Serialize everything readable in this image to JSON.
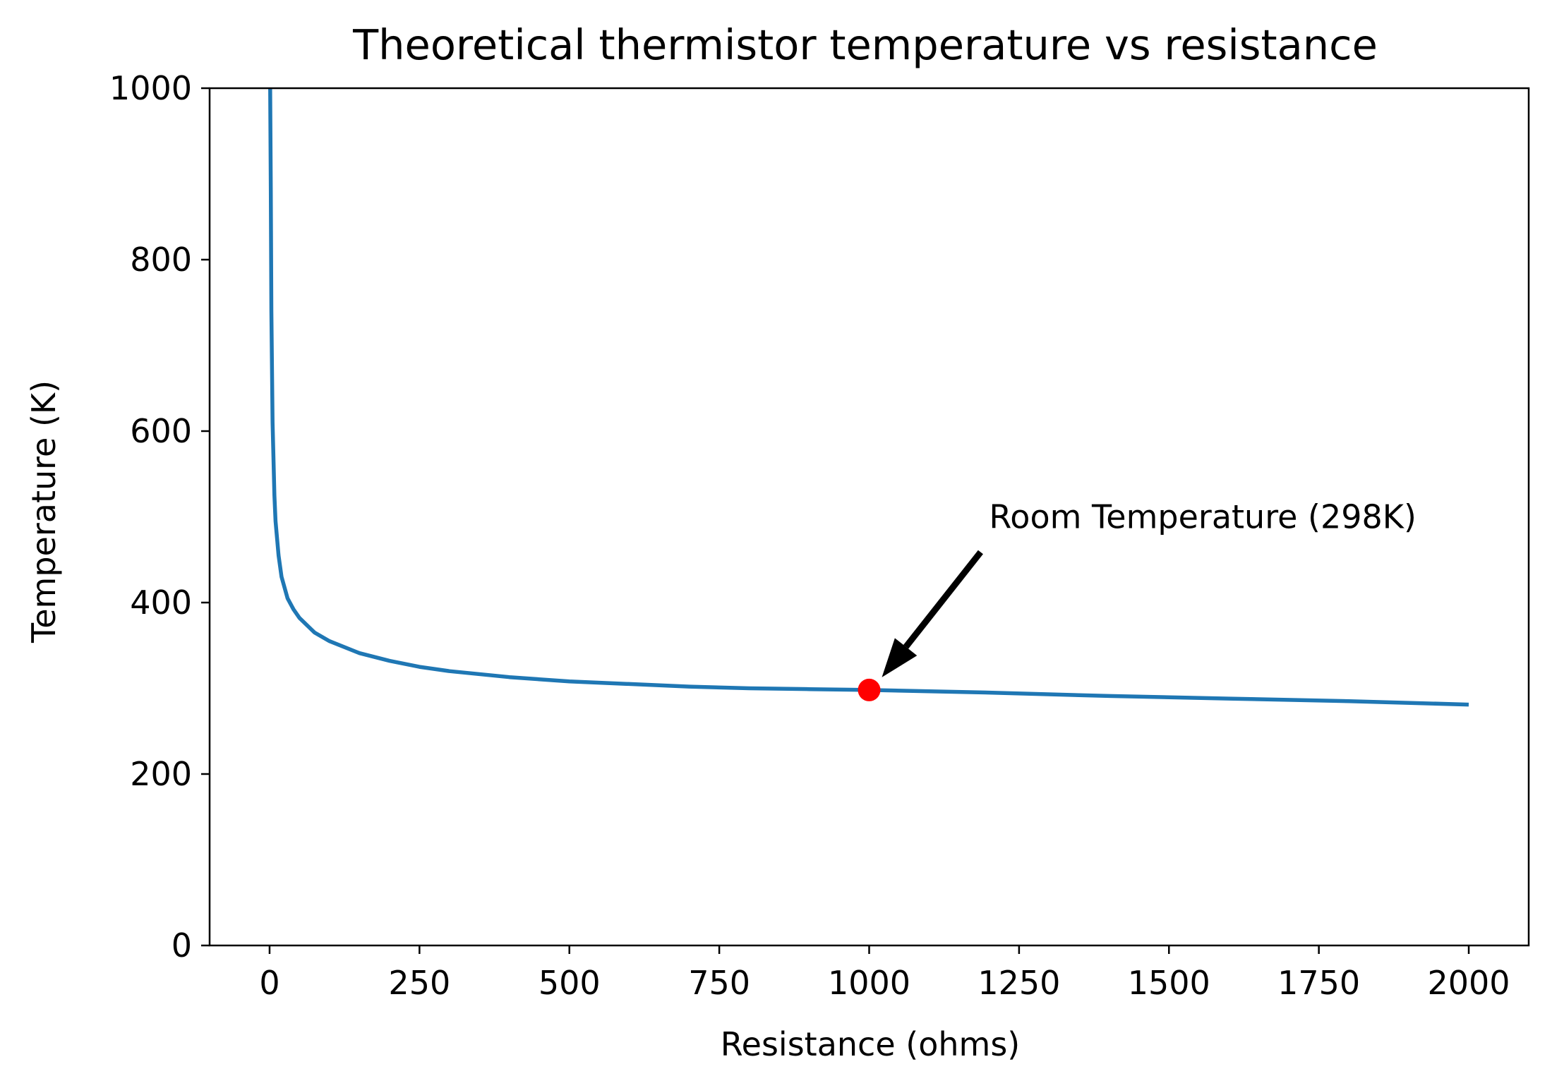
{
  "chart_data": {
    "type": "line",
    "title": "Theoretical thermistor temperature vs resistance",
    "xlabel": "Resistance (ohms)",
    "ylabel": "Temperature (K)",
    "xlim": [
      -100,
      2100
    ],
    "ylim": [
      0,
      1000
    ],
    "xticks": [
      0,
      250,
      500,
      750,
      1000,
      1250,
      1500,
      1750,
      2000
    ],
    "yticks": [
      0,
      200,
      400,
      600,
      800,
      1000
    ],
    "grid": false,
    "series": [
      {
        "color": "#1f77b4",
        "x": [
          1,
          2,
          3,
          5,
          8,
          10,
          15,
          20,
          30,
          40,
          50,
          75,
          100,
          150,
          200,
          250,
          300,
          400,
          500,
          600,
          700,
          800,
          900,
          1000,
          1200,
          1400,
          1600,
          1800,
          2000
        ],
        "y": [
          1000,
          880,
          740,
          610,
          525,
          495,
          455,
          430,
          405,
          392,
          382,
          365,
          355,
          341,
          332,
          325,
          320,
          313,
          308,
          305,
          302,
          300,
          299,
          298,
          295,
          291,
          288,
          285,
          281
        ]
      }
    ],
    "marker": {
      "x": 1000,
      "y": 298,
      "color": "#ff0000"
    },
    "annotation": {
      "text": "Room Temperature (298K)",
      "point": [
        1000,
        298
      ],
      "text_position": [
        1200,
        500
      ],
      "arrow_color": "#000000"
    }
  }
}
